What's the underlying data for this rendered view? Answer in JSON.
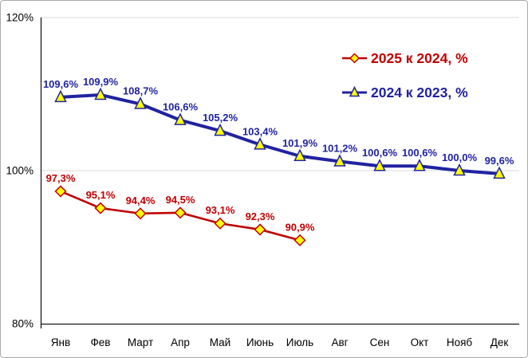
{
  "chart_data": {
    "type": "line",
    "categories": [
      "Янв",
      "Фев",
      "Март",
      "Апр",
      "Май",
      "Июнь",
      "Июль",
      "Авг",
      "Сен",
      "Окт",
      "Нояб",
      "Дек"
    ],
    "series": [
      {
        "name": "2025 к 2024, %",
        "color": "#C00000",
        "marker": "diamond",
        "marker_fill": "#FFFF00",
        "line_width": 2.6,
        "values": [
          97.3,
          95.1,
          94.4,
          94.5,
          93.1,
          92.3,
          90.9
        ],
        "labels": [
          "97,3%",
          "95,1%",
          "94,4%",
          "94,5%",
          "93,1%",
          "92,3%",
          "90,9%"
        ]
      },
      {
        "name": "2024 к 2023, %",
        "color": "#2023A0",
        "marker": "triangle",
        "marker_fill": "#FFFF00",
        "line_width": 4,
        "values": [
          109.6,
          109.9,
          108.7,
          106.6,
          105.2,
          103.4,
          101.9,
          101.2,
          100.6,
          100.6,
          100.0,
          99.6
        ],
        "labels": [
          "109,6%",
          "109,9%",
          "108,7%",
          "106,6%",
          "105,2%",
          "103,4%",
          "101,9%",
          "101,2%",
          "100,6%",
          "100,6%",
          "100,0%",
          "99,6%"
        ]
      }
    ],
    "y_axis": {
      "min": 80,
      "max": 120,
      "tick_values": [
        80,
        100,
        120
      ],
      "tick_labels": [
        "80%",
        "100%",
        "120%"
      ]
    },
    "x_axis": {
      "label_color": "#000000"
    },
    "legend": {
      "position": "top-right-inside"
    },
    "grid": true,
    "colors": {
      "axis": "#1a1a1a",
      "grid": "#d9d9d9",
      "background": "#ffffff",
      "frame_border": "#ababab"
    }
  }
}
